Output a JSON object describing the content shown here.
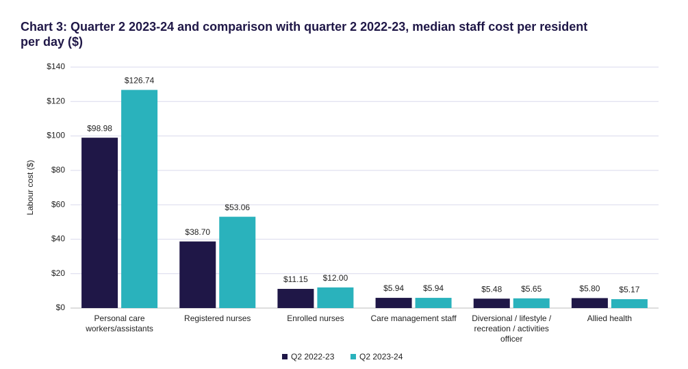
{
  "chart_data": {
    "type": "bar",
    "title": "Chart 3: Quarter 2 2023-24 and comparison with quarter 2 2022-23, median staff cost per resident per day ($)",
    "y_label": "Labour cost ($)",
    "categories": [
      "Personal care workers/assistants",
      "Registered nurses",
      "Enrolled nurses",
      "Care management staff",
      "Diversional / lifestyle / recreation / activities officer",
      "Allied health"
    ],
    "series": [
      {
        "name": "Q2 2022-23",
        "color": "#1f1747",
        "values": [
          98.98,
          38.7,
          11.15,
          5.94,
          5.48,
          5.8
        ],
        "value_labels": [
          "$98.98",
          "$38.70",
          "$11.15",
          "$5.94",
          "$5.48",
          "$5.80"
        ]
      },
      {
        "name": "Q2 2023-24",
        "color": "#2ab2bc",
        "values": [
          126.74,
          53.06,
          12.0,
          5.94,
          5.65,
          5.17
        ],
        "value_labels": [
          "$126.74",
          "$53.06",
          "$12.00",
          "$5.94",
          "$5.65",
          "$5.17"
        ]
      }
    ],
    "ylim": [
      0,
      140
    ],
    "yticks": [
      {
        "value": 0,
        "label": "$0"
      },
      {
        "value": 20,
        "label": "$20"
      },
      {
        "value": 40,
        "label": "$40"
      },
      {
        "value": 60,
        "label": "$60"
      },
      {
        "value": 80,
        "label": "$80"
      },
      {
        "value": 100,
        "label": "$100"
      },
      {
        "value": 120,
        "label": "$120"
      },
      {
        "value": 140,
        "label": "$140"
      }
    ],
    "grid": true,
    "legend": "bottom"
  }
}
